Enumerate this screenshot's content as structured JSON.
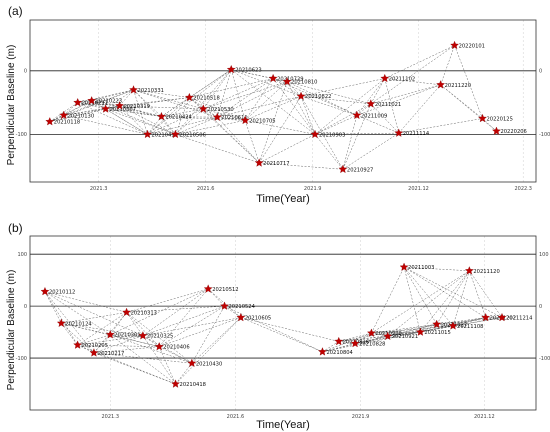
{
  "chart_data": [
    {
      "type": "scatter",
      "panel_label": "(a)",
      "xlabel": "Time(Year)",
      "ylabel": "Perpendicular Baseline (m)",
      "x_ticks": [
        "2021.3",
        "2021.6",
        "2021.9",
        "2021.12",
        "2022.3"
      ],
      "y_ticks": [
        "0",
        "-100"
      ],
      "ylim": [
        -175,
        80
      ],
      "points": [
        {
          "label": "20210118",
          "x": "2021-01-18",
          "y": -80
        },
        {
          "label": "20210130",
          "x": "2021-01-30",
          "y": -70
        },
        {
          "label": "20210211",
          "x": "2021-02-11",
          "y": -50
        },
        {
          "label": "20210223",
          "x": "2021-02-23",
          "y": -47
        },
        {
          "label": "20210307",
          "x": "2021-03-07",
          "y": -60
        },
        {
          "label": "20210319",
          "x": "2021-03-19",
          "y": -55
        },
        {
          "label": "20210331",
          "x": "2021-03-31",
          "y": -30
        },
        {
          "label": "20210412",
          "x": "2021-04-12",
          "y": -100
        },
        {
          "label": "20210424",
          "x": "2021-04-24",
          "y": -72
        },
        {
          "label": "20210506",
          "x": "2021-05-06",
          "y": -100
        },
        {
          "label": "20210518",
          "x": "2021-05-18",
          "y": -42
        },
        {
          "label": "20210530",
          "x": "2021-05-30",
          "y": -60
        },
        {
          "label": "20210611",
          "x": "2021-06-11",
          "y": -73
        },
        {
          "label": "20210623",
          "x": "2021-06-23",
          "y": 2
        },
        {
          "label": "20210705",
          "x": "2021-07-05",
          "y": -78
        },
        {
          "label": "20210717",
          "x": "2021-07-17",
          "y": -145
        },
        {
          "label": "20210729",
          "x": "2021-07-29",
          "y": -12
        },
        {
          "label": "20210810",
          "x": "2021-08-10",
          "y": -17
        },
        {
          "label": "20210822",
          "x": "2021-08-22",
          "y": -40
        },
        {
          "label": "20210903",
          "x": "2021-09-03",
          "y": -100
        },
        {
          "label": "20210927",
          "x": "2021-09-27",
          "y": -155
        },
        {
          "label": "20211009",
          "x": "2021-10-09",
          "y": -70
        },
        {
          "label": "20211021",
          "x": "2021-10-21",
          "y": -52
        },
        {
          "label": "20211102",
          "x": "2021-11-02",
          "y": -12
        },
        {
          "label": "20211114",
          "x": "2021-11-14",
          "y": -98
        },
        {
          "label": "20211220",
          "x": "2021-12-20",
          "y": -22
        },
        {
          "label": "20220101",
          "x": "2022-01-01",
          "y": 40
        },
        {
          "label": "20220125",
          "x": "2022-01-25",
          "y": -75
        },
        {
          "label": "20220206",
          "x": "2022-02-06",
          "y": -95
        }
      ]
    },
    {
      "type": "scatter",
      "panel_label": "(b)",
      "xlabel": "Time(Year)",
      "ylabel": "Perpendicular Baseline (m)",
      "x_ticks": [
        "2021.3",
        "2021.6",
        "2021.9",
        "2021.12"
      ],
      "y_ticks": [
        "100",
        "0",
        "-100"
      ],
      "ylim": [
        -200,
        135
      ],
      "points": [
        {
          "label": "20210112",
          "x": "2021-01-12",
          "y": 28
        },
        {
          "label": "20210124",
          "x": "2021-01-24",
          "y": -33
        },
        {
          "label": "20210205",
          "x": "2021-02-05",
          "y": -75
        },
        {
          "label": "20210217",
          "x": "2021-02-17",
          "y": -90
        },
        {
          "label": "20210301",
          "x": "2021-03-01",
          "y": -55
        },
        {
          "label": "20210313",
          "x": "2021-03-13",
          "y": -12
        },
        {
          "label": "20210325",
          "x": "2021-03-25",
          "y": -57
        },
        {
          "label": "20210406",
          "x": "2021-04-06",
          "y": -78
        },
        {
          "label": "20210418",
          "x": "2021-04-18",
          "y": -150
        },
        {
          "label": "20210430",
          "x": "2021-04-30",
          "y": -110
        },
        {
          "label": "20210512",
          "x": "2021-05-12",
          "y": 33
        },
        {
          "label": "20210524",
          "x": "2021-05-24",
          "y": 0
        },
        {
          "label": "20210605",
          "x": "2021-06-05",
          "y": -22
        },
        {
          "label": "20210804",
          "x": "2021-08-04",
          "y": -88
        },
        {
          "label": "20210816",
          "x": "2021-08-16",
          "y": -68
        },
        {
          "label": "20210828",
          "x": "2021-08-28",
          "y": -72
        },
        {
          "label": "20210909",
          "x": "2021-09-09",
          "y": -52
        },
        {
          "label": "20210921",
          "x": "2021-09-21",
          "y": -58
        },
        {
          "label": "20211003",
          "x": "2021-10-03",
          "y": 75
        },
        {
          "label": "20211015",
          "x": "2021-10-15",
          "y": -50
        },
        {
          "label": "20211027",
          "x": "2021-10-27",
          "y": -35
        },
        {
          "label": "20211108",
          "x": "2021-11-08",
          "y": -38
        },
        {
          "label": "20211120",
          "x": "2021-11-20",
          "y": 68
        },
        {
          "label": "20211202",
          "x": "2021-12-02",
          "y": -22
        },
        {
          "label": "20211214",
          "x": "2021-12-14",
          "y": -22
        }
      ]
    }
  ]
}
